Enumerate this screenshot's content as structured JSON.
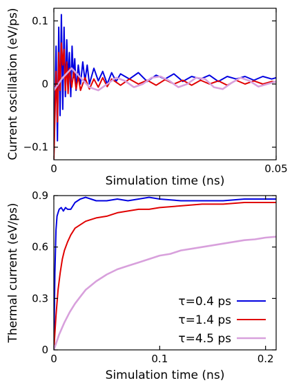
{
  "chart_data": [
    {
      "type": "line",
      "title": "",
      "xlabel": "Simulation time (ns)",
      "ylabel": "Current oscillation (eV/ps)",
      "xlim": [
        0,
        0.05
      ],
      "ylim": [
        -0.12,
        0.12
      ],
      "xticks": [
        0,
        0.05
      ],
      "xtick_labels": [
        "0",
        "0.05"
      ],
      "yticks": [
        -0.1,
        0,
        0.1
      ],
      "ytick_labels": [
        "−0.1",
        "0",
        "0.1"
      ],
      "grid": false,
      "series": [
        {
          "color": "#0000e0",
          "x": [
            0,
            0.0005,
            0.0008,
            0.0011,
            0.0014,
            0.0017,
            0.002,
            0.0023,
            0.0026,
            0.0029,
            0.0032,
            0.0035,
            0.0038,
            0.0041,
            0.0044,
            0.0047,
            0.005,
            0.0055,
            0.006,
            0.0065,
            0.007,
            0.0075,
            0.008,
            0.009,
            0.01,
            0.011,
            0.012,
            0.013,
            0.014,
            0.015,
            0.017,
            0.019,
            0.021,
            0.023,
            0.025,
            0.027,
            0.029,
            0.031,
            0.033,
            0.035,
            0.037,
            0.039,
            0.041,
            0.043,
            0.045,
            0.047,
            0.049,
            0.05
          ],
          "y": [
            -0.11,
            0.06,
            -0.09,
            0.09,
            -0.05,
            0.11,
            -0.04,
            0.09,
            -0.02,
            0.07,
            0.0,
            0.05,
            -0.02,
            0.06,
            0.01,
            0.04,
            -0.01,
            0.03,
            0.0,
            0.035,
            0.005,
            0.03,
            0.0,
            0.025,
            0.005,
            0.02,
            0.0,
            0.018,
            0.004,
            0.016,
            0.008,
            0.018,
            0.004,
            0.014,
            0.008,
            0.016,
            0.004,
            0.012,
            0.008,
            0.014,
            0.004,
            0.012,
            0.008,
            0.012,
            0.006,
            0.012,
            0.008,
            0.01
          ]
        },
        {
          "color": "#e00000",
          "x": [
            0,
            0.0005,
            0.0008,
            0.0011,
            0.0014,
            0.0017,
            0.002,
            0.0023,
            0.0026,
            0.0029,
            0.0032,
            0.0035,
            0.004,
            0.0045,
            0.005,
            0.0055,
            0.006,
            0.007,
            0.008,
            0.009,
            0.01,
            0.011,
            0.012,
            0.013,
            0.015,
            0.017,
            0.019,
            0.021,
            0.023,
            0.025,
            0.027,
            0.029,
            0.031,
            0.033,
            0.035,
            0.037,
            0.039,
            0.041,
            0.043,
            0.045,
            0.047,
            0.049,
            0.05
          ],
          "y": [
            -0.12,
            0.02,
            -0.06,
            0.05,
            -0.01,
            0.065,
            0.03,
            0.055,
            -0.01,
            0.035,
            -0.015,
            0.025,
            -0.005,
            0.02,
            -0.008,
            0.012,
            -0.01,
            0.01,
            -0.008,
            0.008,
            -0.005,
            0.01,
            -0.004,
            0.008,
            -0.002,
            0.008,
            0.0,
            0.006,
            -0.002,
            0.007,
            0.0,
            0.006,
            -0.002,
            0.006,
            0.0,
            0.005,
            -0.002,
            0.006,
            0.0,
            0.005,
            0.0,
            0.004,
            0.003
          ]
        },
        {
          "color": "#d8a0dc",
          "x": [
            0,
            0.002,
            0.004,
            0.006,
            0.008,
            0.01,
            0.012,
            0.014,
            0.016,
            0.018,
            0.02,
            0.022,
            0.024,
            0.026,
            0.028,
            0.03,
            0.032,
            0.034,
            0.036,
            0.038,
            0.04,
            0.042,
            0.044,
            0.046,
            0.048,
            0.05
          ],
          "y": [
            -0.01,
            0.01,
            0.025,
            0.01,
            -0.005,
            -0.01,
            0.0,
            0.01,
            0.005,
            -0.005,
            0.0,
            0.01,
            0.012,
            0.005,
            -0.005,
            0.0,
            0.01,
            0.008,
            -0.005,
            -0.008,
            0.002,
            0.01,
            0.005,
            -0.004,
            0.0,
            0.004
          ]
        }
      ]
    },
    {
      "type": "line",
      "title": "",
      "xlabel": "Simulation time (ns)",
      "ylabel": "Thermal current (eV/ps)",
      "xlim": [
        0,
        0.21
      ],
      "ylim": [
        0,
        0.9
      ],
      "xticks": [
        0,
        0.1,
        0.2
      ],
      "xtick_labels": [
        "0",
        "0.1",
        "0.2"
      ],
      "yticks": [
        0,
        0.3,
        0.6,
        0.9
      ],
      "ytick_labels": [
        "0",
        "0.3",
        "0.6",
        "0.9"
      ],
      "grid": false,
      "legend": "bottom-right",
      "series": [
        {
          "name": "τ=0.4 ps",
          "color": "#0000e0",
          "x": [
            0,
            0.001,
            0.002,
            0.003,
            0.004,
            0.005,
            0.007,
            0.009,
            0.011,
            0.013,
            0.016,
            0.02,
            0.025,
            0.03,
            0.035,
            0.04,
            0.05,
            0.06,
            0.07,
            0.08,
            0.09,
            0.1,
            0.12,
            0.14,
            0.16,
            0.18,
            0.2,
            0.21
          ],
          "y": [
            0.0,
            0.45,
            0.7,
            0.78,
            0.8,
            0.82,
            0.83,
            0.81,
            0.83,
            0.82,
            0.82,
            0.86,
            0.88,
            0.89,
            0.88,
            0.87,
            0.87,
            0.88,
            0.87,
            0.88,
            0.89,
            0.88,
            0.87,
            0.87,
            0.87,
            0.88,
            0.88,
            0.88
          ]
        },
        {
          "name": "τ=1.4 ps",
          "color": "#e00000",
          "x": [
            0,
            0.002,
            0.004,
            0.006,
            0.008,
            0.01,
            0.013,
            0.016,
            0.02,
            0.025,
            0.03,
            0.035,
            0.04,
            0.05,
            0.06,
            0.07,
            0.08,
            0.09,
            0.1,
            0.12,
            0.14,
            0.16,
            0.18,
            0.2,
            0.21
          ],
          "y": [
            0.0,
            0.2,
            0.35,
            0.45,
            0.53,
            0.58,
            0.63,
            0.67,
            0.71,
            0.73,
            0.75,
            0.76,
            0.77,
            0.78,
            0.8,
            0.81,
            0.82,
            0.82,
            0.83,
            0.84,
            0.85,
            0.85,
            0.86,
            0.86,
            0.86
          ]
        },
        {
          "name": "τ=4.5 ps",
          "color": "#d8a0dc",
          "x": [
            0,
            0.005,
            0.01,
            0.015,
            0.02,
            0.025,
            0.03,
            0.04,
            0.05,
            0.06,
            0.07,
            0.08,
            0.09,
            0.1,
            0.11,
            0.12,
            0.13,
            0.14,
            0.15,
            0.16,
            0.17,
            0.18,
            0.19,
            0.2,
            0.21
          ],
          "y": [
            0.0,
            0.09,
            0.16,
            0.22,
            0.27,
            0.31,
            0.35,
            0.4,
            0.44,
            0.47,
            0.49,
            0.51,
            0.53,
            0.55,
            0.56,
            0.58,
            0.59,
            0.6,
            0.61,
            0.62,
            0.63,
            0.64,
            0.645,
            0.655,
            0.66
          ]
        }
      ]
    }
  ]
}
